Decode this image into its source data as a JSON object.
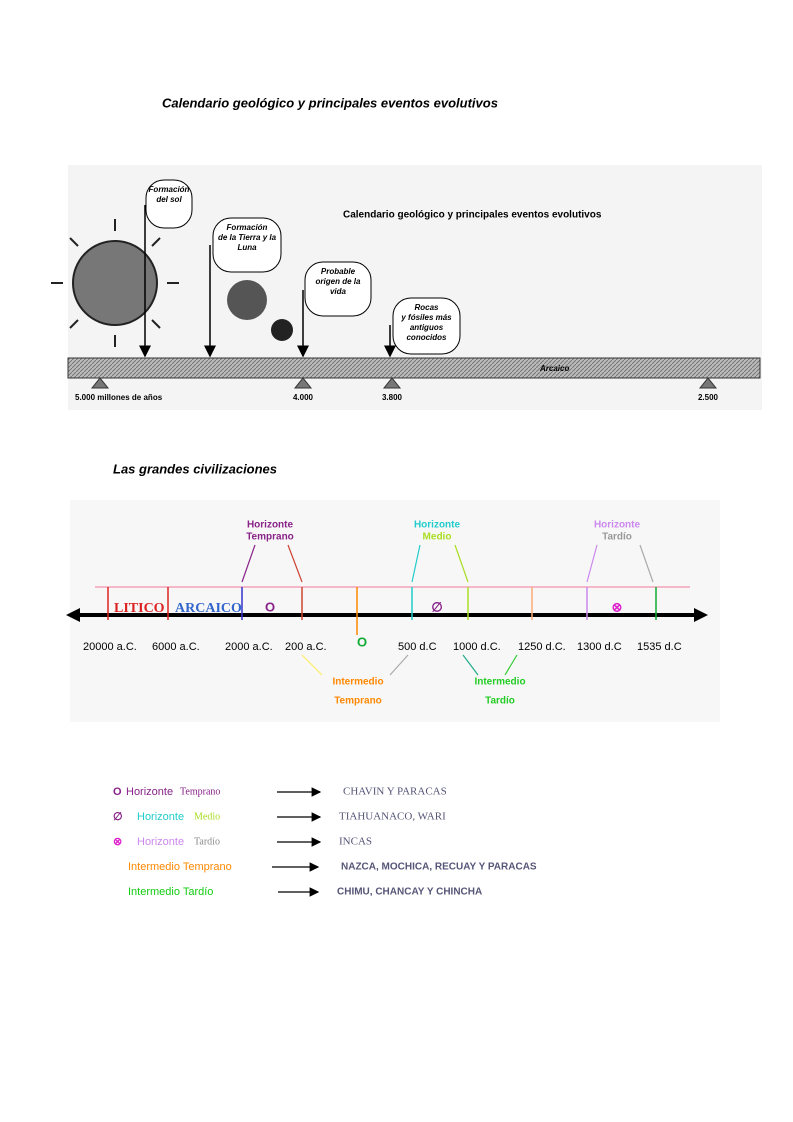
{
  "heading": "Calendario geológico y principales eventos evolutivos",
  "geo": {
    "title": "Calendario geológico y principales eventos evolutivos",
    "callouts": [
      [
        "Formación",
        "del sol"
      ],
      [
        "Formación",
        "de la Tierra y la",
        "Luna"
      ],
      [
        "Probable",
        "origen de la",
        "vida"
      ],
      [
        "Rocas",
        "y fósiles más",
        "antiguos",
        "conocidos"
      ]
    ],
    "bar_label": "Arcaico",
    "ticks": [
      "5.000 millones de años",
      "4.000",
      "3.800",
      "2.500"
    ]
  },
  "civ_heading": "Las grandes civilizaciones",
  "timeline": {
    "horizons": [
      [
        "Horizonte",
        "Temprano"
      ],
      [
        "Horizonte",
        "Medio"
      ],
      [
        "Horizonte",
        "Tardío"
      ]
    ],
    "periods": [
      "LITICO",
      "ARCAICO"
    ],
    "line_symbols": [
      "O",
      "∅",
      "⊗"
    ],
    "intermediate_symbol": "O",
    "dates": [
      "20000 a.C.",
      "6000 a.C.",
      "2000 a.C.",
      "200 a.C.",
      "500 d.C",
      "1000 d.C.",
      "1250 d.C.",
      "1300 d.C",
      "1535 d.C"
    ],
    "intermediates": [
      [
        "Intermedio",
        "Temprano"
      ],
      [
        "Intermedio",
        "Tardío"
      ]
    ]
  },
  "legend": [
    {
      "symbol": "O",
      "words": [
        "Horizonte",
        "Temprano"
      ],
      "culture": "CHAVIN Y PARACAS"
    },
    {
      "symbol": "∅",
      "words": [
        "Horizonte",
        "Medio"
      ],
      "culture": "TIAHUANACO, WARI"
    },
    {
      "symbol": "⊗",
      "words": [
        "Horizonte",
        "Tardío"
      ],
      "culture": "INCAS"
    },
    {
      "words": [
        "Intermedio Temprano"
      ],
      "culture": "NAZCA, MOCHICA, RECUAY Y PARACAS"
    },
    {
      "words": [
        "Intermedio Tardío"
      ],
      "culture": "CHIMU, CHANCAY Y CHINCHA"
    }
  ]
}
